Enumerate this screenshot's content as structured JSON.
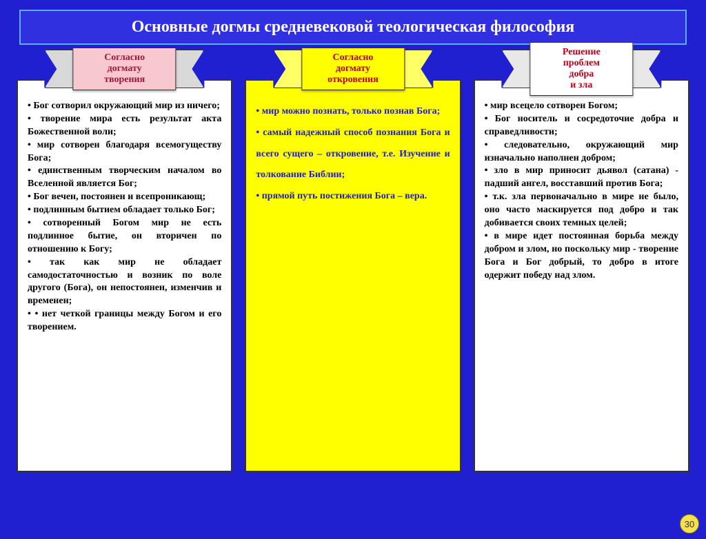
{
  "colors": {
    "page_bg": "#2020d0",
    "title_border": "#5bb0f0",
    "title_bg": "#3030e0",
    "title_text": "#ffffff",
    "ribbon1_tail": "#d9d9d9",
    "ribbon1_center": "#f8c8d0",
    "ribbon1_text": "#a01836",
    "ribbon2_tail": "#ffff66",
    "ribbon2_center": "#ffff00",
    "ribbon2_text": "#c00018",
    "ribbon3_tail": "#e8e8e8",
    "ribbon3_center": "#ffffff",
    "ribbon3_text": "#c00018",
    "box1_bg": "#ffffff",
    "box2_bg": "#ffff00",
    "box2_text": "#2020c0",
    "box3_bg": "#ffffff",
    "badge_bg": "#f5e050"
  },
  "title": "Основные догмы средневековой теологическая философия",
  "slide_number": "30",
  "columns": [
    {
      "ribbon": "Согласно\nдогмату\nтворения",
      "box_class": "pink",
      "items": [
        "Бог сотворил окружающий мир из ничего;",
        "творение мира есть результат акта Божественной воли;",
        "мир сотворен благодаря всемогуществу Бога;",
        "единственным творческим началом во Вселенной является Бог;",
        "Бог вечен, постоянен и всепроникающ;",
        "подлинным бытием обладает только Бог;",
        "сотворенный Богом мир не есть подлинное бытие, он вторичен по отношению к Богу;",
        "так как мир не обладает самодостаточностью и возник по воле другого (Бога), он непостоянен, изменчив и временен;",
        "• нет четкой границы между Богом и его творением."
      ]
    },
    {
      "ribbon": "Согласно\nдогмату\nоткровения",
      "box_class": "yellow",
      "spaced": true,
      "items": [
        "мир можно познать, только познав Бога;",
        "самый надежный способ познания Бога и всего сущего – откровение, т.е. Изучение и толкование Библии;",
        "прямой путь постижения Бога – вера."
      ]
    },
    {
      "ribbon": "Решение\nпроблем\nдобра\nи зла",
      "box_class": "white",
      "items": [
        "мир всецело сотворен Богом;",
        "Бог носитель и сосредоточие добра и справедливости;",
        "следовательно, окружающий мир изначально наполнен добром;",
        "зло в мир приносит дьявол (сатана) - падший ангел, восставший против Бога;",
        "т.к. зла первоначально в мире не было, оно часто маскируется под добро и так добивается своих темных целей;",
        "в мире идет постоянная борьба между добром и злом, но поскольку мир - творение Бога и Бог добрый, то добро в итоге одержит победу над злом."
      ]
    }
  ]
}
